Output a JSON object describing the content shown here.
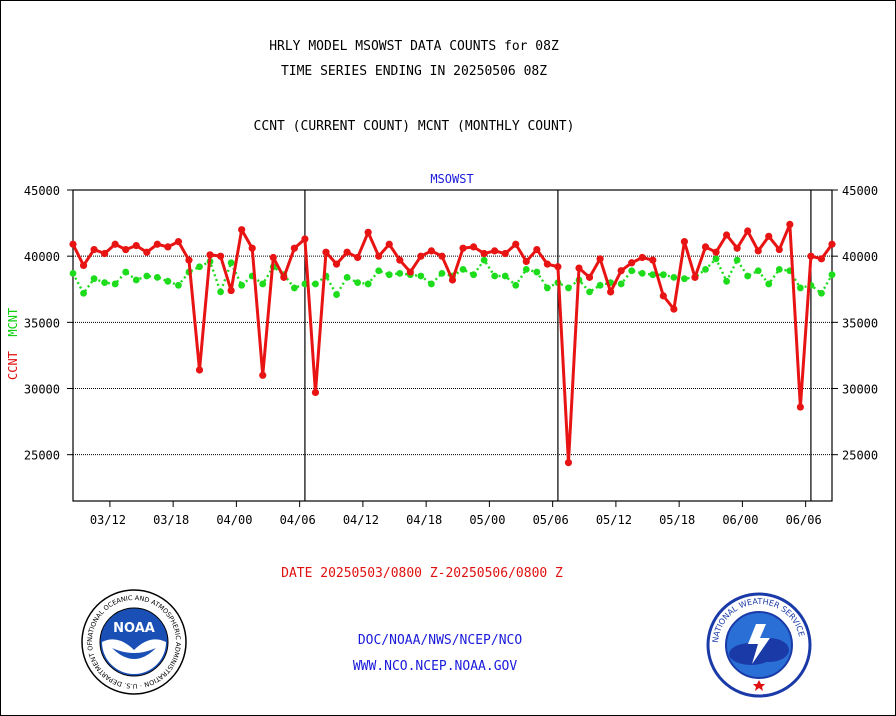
{
  "header": {
    "title1": "HRLY MODEL MSOWST DATA COUNTS for 08Z",
    "title2": "TIME SERIES ENDING IN 20250506 08Z",
    "subtitle": "CCNT (CURRENT COUNT) MCNT (MONTHLY COUNT)"
  },
  "footer": {
    "date_range": "DATE 20250503/0800 Z-20250506/0800 Z",
    "agency": "DOC/NOAA/NWS/NCEP/NCO",
    "website": "WWW.NCO.NCEP.NOAA.GOV"
  },
  "logos": {
    "noaa_text": "NOAA",
    "nws_ring": "NATIONAL WEATHER SERVICE",
    "noaa_ring": "NATIONAL OCEANIC AND ATMOSPHERIC ADMINISTRATION · U.S. DEPARTMENT OF COMMERCE"
  },
  "colors": {
    "ccnt": "#e81414",
    "mcnt": "#1cdc1c",
    "title_blue": "#1a1adb",
    "red_text": "#e01010"
  },
  "chart_data": {
    "type": "line",
    "title": "MSOWST",
    "ylabel_ccnt": "CCNT",
    "ylabel_mcnt": "MCNT",
    "ylim": [
      21500,
      45000
    ],
    "yticks": [
      25000,
      30000,
      35000,
      40000,
      45000
    ],
    "ytick_labels": [
      "25000",
      "30000",
      "35000",
      "40000",
      "45000"
    ],
    "grid": true,
    "xlim": [
      0,
      72
    ],
    "xtick_positions": [
      3.5,
      9.5,
      15.5,
      21.5,
      27.5,
      33.5,
      39.5,
      45.5,
      51.5,
      57.5,
      63.5,
      69.5
    ],
    "xtick_labels": [
      "03/12",
      "03/18",
      "04/00",
      "04/06",
      "04/12",
      "04/18",
      "05/00",
      "05/06",
      "05/12",
      "05/18",
      "06/00",
      "06/06"
    ],
    "day_boundaries": [
      22,
      46,
      70
    ],
    "series": [
      {
        "name": "CCNT",
        "values": [
          40900,
          39300,
          40500,
          40200,
          40900,
          40500,
          40800,
          40300,
          40900,
          40700,
          41100,
          39700,
          31400,
          40100,
          40000,
          37400,
          42000,
          40600,
          31000,
          39900,
          38400,
          40600,
          41300,
          29700,
          40300,
          39400,
          40300,
          39900,
          41800,
          40000,
          40900,
          39700,
          38800,
          40000,
          40400,
          40000,
          38200,
          40600,
          40700,
          40200,
          40400,
          40200,
          40900,
          39600,
          40500,
          39400,
          39200,
          24400,
          39100,
          38400,
          39800,
          37300,
          38900,
          39500,
          39900,
          39700,
          37000,
          36000,
          41100,
          38400,
          40700,
          40300,
          41600,
          40600,
          41900,
          40400,
          41500,
          40500,
          42400,
          28600,
          40000,
          39800,
          40900
        ]
      },
      {
        "name": "MCNT",
        "values": [
          38700,
          37200,
          38300,
          38000,
          37900,
          38800,
          38200,
          38500,
          38400,
          38100,
          37800,
          38800,
          39200,
          39600,
          37300,
          39500,
          37800,
          38500,
          37900,
          39200,
          38600,
          37600,
          37900,
          37900,
          38500,
          37100,
          38400,
          38000,
          37900,
          38900,
          38600,
          38700,
          38600,
          38500,
          37900,
          38700,
          38500,
          39000,
          38600,
          39700,
          38500,
          38500,
          37800,
          39000,
          38800,
          37600,
          38000,
          37600,
          38200,
          37300,
          37800,
          38000,
          37900,
          38900,
          38700,
          38600,
          38600,
          38400,
          38300,
          38400,
          39000,
          39800,
          38100,
          39700,
          38500,
          38900,
          37900,
          39000,
          38900,
          37600,
          37800,
          37200,
          38600
        ]
      }
    ]
  }
}
